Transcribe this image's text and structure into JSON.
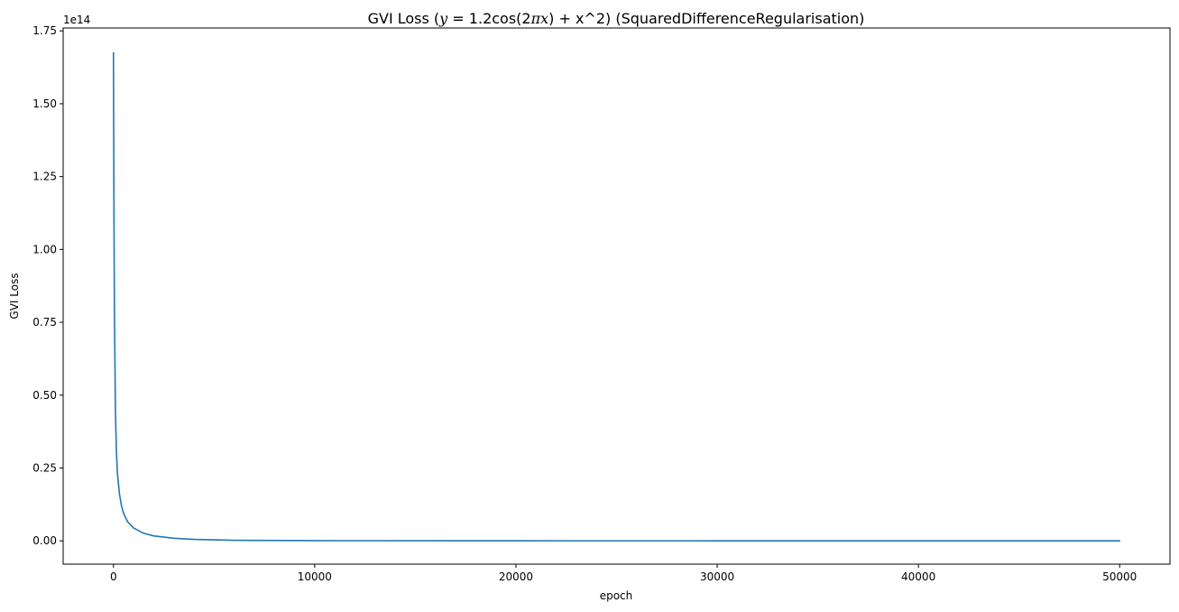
{
  "chart_data": {
    "type": "line",
    "title": {
      "prefix": "GVI Loss (",
      "var_y": "y",
      "equals": " = 1.2cos(2",
      "var_pi": "π",
      "var_x": "x",
      "suffix": ") + x^2) (SquaredDifferenceRegularisation)"
    },
    "xlabel": "epoch",
    "ylabel": "GVI Loss",
    "y_scale_label": "1e14",
    "y_scale": 100000000000000,
    "xlim": [
      -2500,
      52500
    ],
    "ylim": [
      -8000000000000.0,
      176000000000000.0
    ],
    "x_ticks": [
      0,
      10000,
      20000,
      30000,
      40000,
      50000
    ],
    "x_tick_labels": [
      "0",
      "10000",
      "20000",
      "30000",
      "40000",
      "50000"
    ],
    "y_ticks": [
      0,
      25000000000000.0,
      50000000000000.0,
      75000000000000.0,
      100000000000000.0,
      125000000000000.0,
      150000000000000.0,
      175000000000000.0
    ],
    "y_tick_labels": [
      "0.00",
      "0.25",
      "0.50",
      "0.75",
      "1.00",
      "1.25",
      "1.50",
      "1.75"
    ],
    "line_color": "#1f77b4",
    "grid": false,
    "series": [
      {
        "name": "GVI Loss",
        "x": [
          0,
          25,
          50,
          100,
          150,
          200,
          300,
          400,
          500,
          700,
          1000,
          1500,
          2000,
          3000,
          4000,
          6000,
          10000,
          20000,
          30000,
          40000,
          50000
        ],
        "y": [
          167500000000000.0,
          112000000000000.0,
          77000000000000.0,
          44000000000000.0,
          30000000000000.0,
          23000000000000.0,
          16000000000000.0,
          12000000000000.0,
          9500000000000.0,
          6600000000000.0,
          4400000000000.0,
          2600000000000.0,
          1700000000000.0,
          900000000000.0,
          500000000000.0,
          200000000000.0,
          60000000000.0,
          20000000000.0,
          10000000000.0,
          5000000000.0,
          3000000000.0
        ]
      }
    ]
  }
}
